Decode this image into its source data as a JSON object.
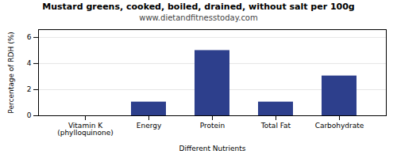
{
  "chart_data": {
    "type": "bar",
    "title": "Mustard greens, cooked, boiled, drained, without salt per 100g",
    "subtitle": "www.dietandfitnesstoday.com",
    "xlabel": "Different Nutrients",
    "ylabel": "Percentage of RDH (%)",
    "categories": [
      "Vitamin K (phylloquinone)",
      "Energy",
      "Protein",
      "Total Fat",
      "Carbohydrate"
    ],
    "values": [
      0,
      1.05,
      5.0,
      1.05,
      3.05
    ],
    "color": "#2d3f8c",
    "ylim": [
      0,
      6.6
    ],
    "yticks": [
      0,
      2,
      4,
      6
    ],
    "grid": true
  }
}
